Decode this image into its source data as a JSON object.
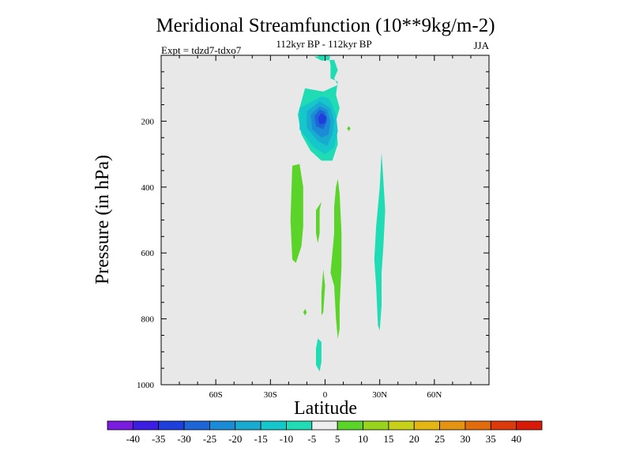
{
  "chart_data": {
    "type": "contour",
    "title": "Meridional Streamfunction (10**9kg/m-2)",
    "subtitle": "112kyr BP - 112kyr BP",
    "left_note": "Expt = tdzd7-tdxo7",
    "season": "JJA",
    "xlabel": "Latitude",
    "ylabel": "Pressure (in hPa)",
    "x_range": [
      -90,
      90
    ],
    "y_range": [
      0,
      1000
    ],
    "y_inverted": true,
    "x_ticks": [
      {
        "value": -60,
        "label": "60S"
      },
      {
        "value": -30,
        "label": "30S"
      },
      {
        "value": 0,
        "label": "0"
      },
      {
        "value": 30,
        "label": "30N"
      },
      {
        "value": 60,
        "label": "60N"
      }
    ],
    "y_ticks": [
      {
        "value": 200,
        "label": "200"
      },
      {
        "value": 400,
        "label": "400"
      },
      {
        "value": 600,
        "label": "600"
      },
      {
        "value": 800,
        "label": "800"
      },
      {
        "value": 1000,
        "label": "1000"
      }
    ],
    "background_color": "#e8e8e8",
    "levels": [
      -40,
      -35,
      -30,
      -25,
      -20,
      -15,
      -10,
      -5,
      5,
      10,
      15,
      20,
      25,
      30,
      35,
      40
    ],
    "colorbar_colors": [
      "#7a1be0",
      "#3c1ee2",
      "#1f3fdc",
      "#1e66d8",
      "#1c8bd6",
      "#19aad0",
      "#15c6cb",
      "#20dcb4",
      "#eeeeee",
      "#5bd42a",
      "#98d41d",
      "#c8d11a",
      "#e4b614",
      "#e49411",
      "#e06c0e",
      "#dc3a0b",
      "#d81a08"
    ],
    "regions": [
      {
        "name": "cyan-upper-outer",
        "color": "#20dcb4",
        "points": [
          [
            -4,
            0
          ],
          [
            -2,
            12
          ],
          [
            2,
            14
          ],
          [
            3,
            4
          ],
          [
            0,
            0
          ]
        ]
      },
      {
        "name": "cyan-upper-block",
        "color": "#20dcb4",
        "points": [
          [
            -6,
            4
          ],
          [
            -2,
            16
          ],
          [
            5,
            14
          ],
          [
            7,
            45
          ],
          [
            5,
            70
          ],
          [
            7,
            90
          ],
          [
            -1,
            110
          ],
          [
            -11,
            100
          ],
          [
            -15,
            180
          ],
          [
            -13,
            240
          ],
          [
            -8,
            290
          ],
          [
            -2,
            320
          ],
          [
            4,
            320
          ],
          [
            7,
            270
          ],
          [
            6,
            200
          ],
          [
            8,
            160
          ],
          [
            6,
            120
          ],
          [
            7,
            80
          ],
          [
            3,
            70
          ],
          [
            3,
            30
          ],
          [
            2,
            0
          ]
        ]
      },
      {
        "name": "min-10",
        "color": "#15c6cb",
        "points": [
          [
            -2,
            125
          ],
          [
            -14,
            160
          ],
          [
            -14,
            225
          ],
          [
            -6,
            280
          ],
          [
            0,
            300
          ],
          [
            5,
            280
          ],
          [
            7,
            230
          ],
          [
            6,
            180
          ],
          [
            4,
            150
          ],
          [
            2,
            130
          ]
        ]
      },
      {
        "name": "min-15",
        "color": "#19aad0",
        "points": [
          [
            -3,
            140
          ],
          [
            -10,
            170
          ],
          [
            -10,
            220
          ],
          [
            -4,
            260
          ],
          [
            1,
            275
          ],
          [
            4,
            240
          ],
          [
            5,
            200
          ],
          [
            3,
            160
          ]
        ]
      },
      {
        "name": "min-20",
        "color": "#1c8bd6",
        "points": [
          [
            -3,
            155
          ],
          [
            -8,
            180
          ],
          [
            -7,
            225
          ],
          [
            -2,
            250
          ],
          [
            2,
            240
          ],
          [
            3,
            200
          ],
          [
            1,
            165
          ]
        ]
      },
      {
        "name": "min-25",
        "color": "#1e66d8",
        "points": [
          [
            -3,
            165
          ],
          [
            -6,
            185
          ],
          [
            -5,
            215
          ],
          [
            -1,
            225
          ],
          [
            1,
            200
          ],
          [
            0,
            172
          ]
        ]
      },
      {
        "name": "min-30",
        "color": "#1f3fdc",
        "points": [
          [
            -2,
            175
          ],
          [
            -4,
            190
          ],
          [
            -3,
            210
          ],
          [
            0,
            206
          ],
          [
            1,
            188
          ]
        ]
      },
      {
        "name": "green-left-band",
        "color": "#5bd42a",
        "points": [
          [
            -18,
            335
          ],
          [
            -14,
            330
          ],
          [
            -12,
            400
          ],
          [
            -12,
            520
          ],
          [
            -13,
            580
          ],
          [
            -16,
            630
          ],
          [
            -18,
            620
          ],
          [
            -19,
            500
          ]
        ]
      },
      {
        "name": "green-small-1",
        "color": "#5bd42a",
        "points": [
          [
            -3,
            470
          ],
          [
            -2,
            445
          ],
          [
            -5,
            470
          ],
          [
            -5,
            540
          ],
          [
            -4,
            570
          ],
          [
            -3,
            540
          ]
        ]
      },
      {
        "name": "green-center-band",
        "color": "#5bd42a",
        "points": [
          [
            7,
            375
          ],
          [
            8,
            420
          ],
          [
            9,
            540
          ],
          [
            9,
            640
          ],
          [
            8,
            760
          ],
          [
            8,
            830
          ],
          [
            7,
            860
          ],
          [
            6,
            800
          ],
          [
            5,
            700
          ],
          [
            3,
            660
          ],
          [
            5,
            540
          ],
          [
            5,
            460
          ],
          [
            6,
            400
          ]
        ]
      },
      {
        "name": "green-lower-left",
        "color": "#5bd42a",
        "points": [
          [
            -1,
            650
          ],
          [
            0,
            700
          ],
          [
            -1,
            780
          ],
          [
            -2,
            790
          ],
          [
            -2,
            720
          ]
        ]
      },
      {
        "name": "green-tiny",
        "color": "#5bd42a",
        "points": [
          [
            -11,
            770
          ],
          [
            -10,
            780
          ],
          [
            -11,
            790
          ],
          [
            -12,
            780
          ]
        ]
      },
      {
        "name": "green-dot-upper",
        "color": "#5bd42a",
        "points": [
          [
            13,
            215
          ],
          [
            14,
            222
          ],
          [
            13,
            230
          ],
          [
            12,
            222
          ]
        ]
      },
      {
        "name": "cyan-right-streak",
        "color": "#20dcb4",
        "points": [
          [
            31,
            295
          ],
          [
            32,
            380
          ],
          [
            33,
            470
          ],
          [
            32,
            580
          ],
          [
            31,
            660
          ],
          [
            31,
            760
          ],
          [
            30,
            835
          ],
          [
            29,
            820
          ],
          [
            28,
            700
          ],
          [
            27,
            620
          ],
          [
            28,
            520
          ],
          [
            30,
            400
          ]
        ]
      },
      {
        "name": "cyan-bottom",
        "color": "#20dcb4",
        "points": [
          [
            -4,
            860
          ],
          [
            -2,
            870
          ],
          [
            -2,
            930
          ],
          [
            -3,
            960
          ],
          [
            -5,
            940
          ],
          [
            -5,
            890
          ]
        ]
      }
    ]
  }
}
